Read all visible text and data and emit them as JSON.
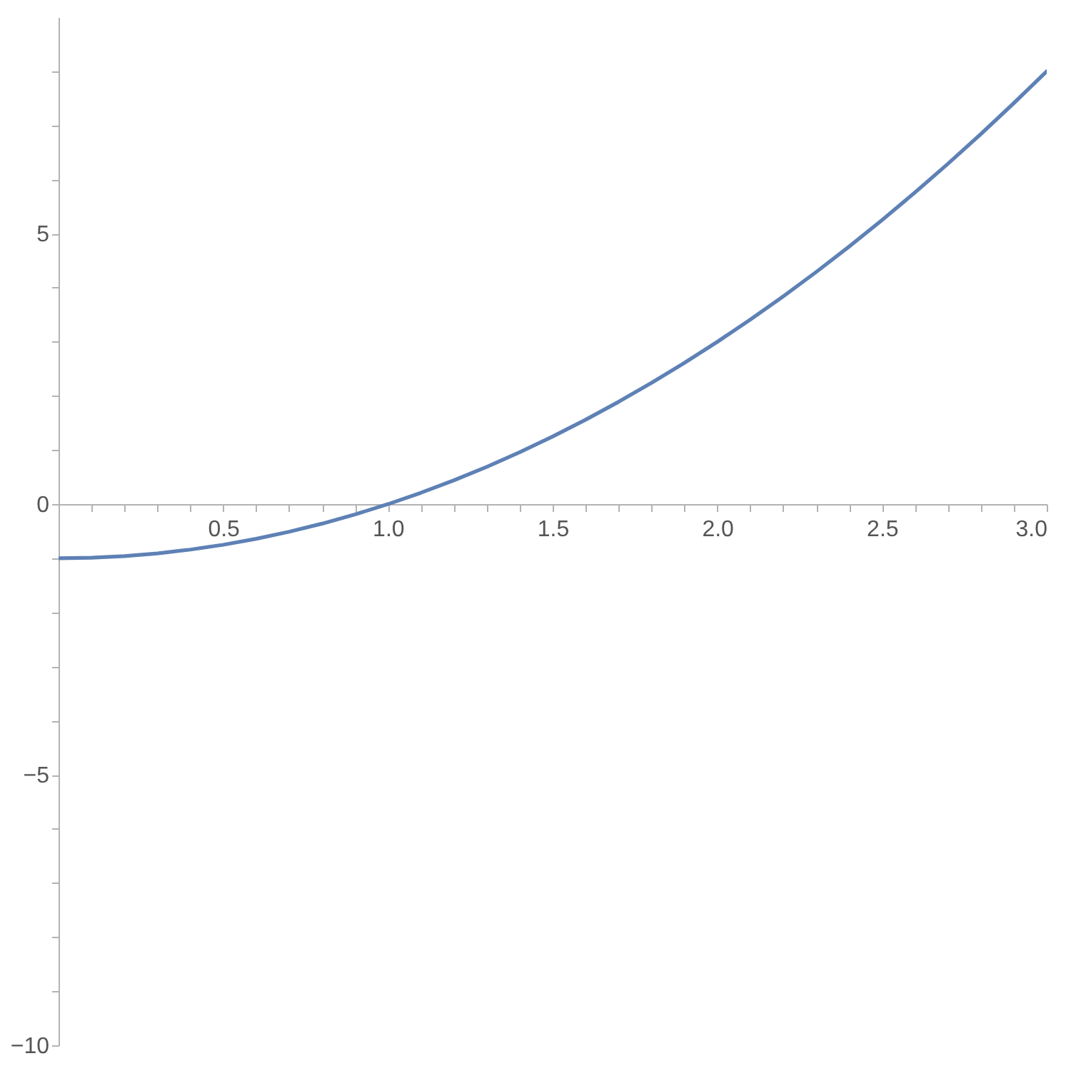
{
  "chart_data": {
    "type": "line",
    "x": [
      0,
      0.1,
      0.2,
      0.3,
      0.4,
      0.5,
      0.6,
      0.7,
      0.8,
      0.9,
      1,
      1.1,
      1.2,
      1.3,
      1.4,
      1.5,
      1.6,
      1.7,
      1.8,
      1.9,
      2,
      2.1,
      2.2,
      2.3,
      2.4,
      2.5,
      2.6,
      2.7,
      2.8,
      2.9,
      3
    ],
    "series": [
      {
        "color": "#5e81b5",
        "values": [
          -1,
          -0.99,
          -0.96,
          -0.91,
          -0.84,
          -0.75,
          -0.64,
          -0.51,
          -0.36,
          -0.19,
          0,
          0.21,
          0.44,
          0.69,
          0.96,
          1.25,
          1.56,
          1.89,
          2.24,
          2.61,
          3,
          3.41,
          3.84,
          4.29,
          4.76,
          5.25,
          5.76,
          6.29,
          6.84,
          7.41,
          8
        ]
      }
    ],
    "xlim": [
      0,
      3
    ],
    "ylim": [
      -10,
      9
    ],
    "xticks": [
      {
        "value": 0.1,
        "label": null
      },
      {
        "value": 0.2,
        "label": null
      },
      {
        "value": 0.3,
        "label": null
      },
      {
        "value": 0.4,
        "label": null
      },
      {
        "value": 0.5,
        "label": "0.5"
      },
      {
        "value": 0.6,
        "label": null
      },
      {
        "value": 0.7,
        "label": null
      },
      {
        "value": 0.8,
        "label": null
      },
      {
        "value": 0.9,
        "label": null
      },
      {
        "value": 1,
        "label": "1.0"
      },
      {
        "value": 1.1,
        "label": null
      },
      {
        "value": 1.2,
        "label": null
      },
      {
        "value": 1.3,
        "label": null
      },
      {
        "value": 1.4,
        "label": null
      },
      {
        "value": 1.5,
        "label": "1.5"
      },
      {
        "value": 1.6,
        "label": null
      },
      {
        "value": 1.7,
        "label": null
      },
      {
        "value": 1.8,
        "label": null
      },
      {
        "value": 1.9,
        "label": null
      },
      {
        "value": 2,
        "label": "2.0"
      },
      {
        "value": 2.1,
        "label": null
      },
      {
        "value": 2.2,
        "label": null
      },
      {
        "value": 2.3,
        "label": null
      },
      {
        "value": 2.4,
        "label": null
      },
      {
        "value": 2.5,
        "label": "2.5"
      },
      {
        "value": 2.6,
        "label": null
      },
      {
        "value": 2.7,
        "label": null
      },
      {
        "value": 2.8,
        "label": null
      },
      {
        "value": 2.9,
        "label": null
      },
      {
        "value": 3,
        "label": "3.0"
      }
    ],
    "yticks": [
      {
        "value": -10,
        "label": "−10"
      },
      {
        "value": -9,
        "label": null
      },
      {
        "value": -8,
        "label": null
      },
      {
        "value": -7,
        "label": null
      },
      {
        "value": -6,
        "label": null
      },
      {
        "value": -5,
        "label": "−5"
      },
      {
        "value": -4,
        "label": null
      },
      {
        "value": -3,
        "label": null
      },
      {
        "value": -2,
        "label": null
      },
      {
        "value": -1,
        "label": null
      },
      0,
      {
        "value": 1,
        "label": null
      },
      {
        "value": 2,
        "label": null
      },
      {
        "value": 3,
        "label": null
      },
      {
        "value": 4,
        "label": null
      },
      5,
      {
        "value": 6,
        "label": null
      },
      {
        "value": 7,
        "label": null
      },
      {
        "value": 8,
        "label": null
      }
    ],
    "grid": false,
    "marker": "none",
    "line_style": "solid"
  }
}
